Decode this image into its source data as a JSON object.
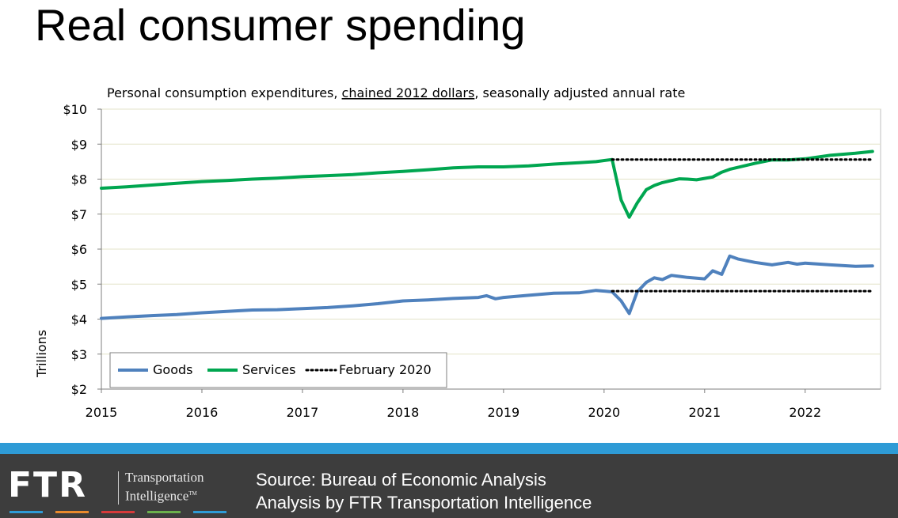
{
  "title": "Real consumer spending",
  "chart_data": {
    "type": "line",
    "subtitle_parts": [
      "Personal consumption expenditures, ",
      "chained 2012 dollars",
      ", seasonally adjusted annual rate"
    ],
    "ylabel": "Trillions",
    "ylim": [
      2,
      10
    ],
    "yticks": [
      "$2",
      "$3",
      "$4",
      "$5",
      "$6",
      "$7",
      "$8",
      "$9",
      "$10"
    ],
    "xlim": [
      2015.0,
      2022.75
    ],
    "xticks": [
      "2015",
      "2016",
      "2017",
      "2018",
      "2019",
      "2020",
      "2021",
      "2022"
    ],
    "grid": true,
    "legend_position": "bottom-left",
    "series": [
      {
        "name": "Goods",
        "color": "#4f81bd",
        "style": "solid",
        "x": [
          2015.0,
          2015.25,
          2015.5,
          2015.75,
          2016.0,
          2016.25,
          2016.5,
          2016.75,
          2017.0,
          2017.25,
          2017.5,
          2017.75,
          2018.0,
          2018.25,
          2018.5,
          2018.75,
          2018.83,
          2018.92,
          2019.0,
          2019.25,
          2019.5,
          2019.75,
          2019.92,
          2020.08,
          2020.17,
          2020.25,
          2020.33,
          2020.42,
          2020.5,
          2020.58,
          2020.67,
          2020.75,
          2020.83,
          2021.0,
          2021.08,
          2021.17,
          2021.25,
          2021.33,
          2021.5,
          2021.67,
          2021.83,
          2021.92,
          2022.0,
          2022.25,
          2022.5,
          2022.67
        ],
        "values": [
          4.02,
          4.06,
          4.1,
          4.13,
          4.18,
          4.22,
          4.26,
          4.27,
          4.3,
          4.33,
          4.38,
          4.44,
          4.52,
          4.55,
          4.59,
          4.62,
          4.67,
          4.58,
          4.62,
          4.68,
          4.74,
          4.75,
          4.82,
          4.78,
          4.52,
          4.16,
          4.78,
          5.05,
          5.18,
          5.13,
          5.25,
          5.22,
          5.19,
          5.15,
          5.38,
          5.28,
          5.8,
          5.72,
          5.62,
          5.55,
          5.62,
          5.57,
          5.6,
          5.55,
          5.51,
          5.52
        ]
      },
      {
        "name": "Services",
        "color": "#00a650",
        "style": "solid",
        "x": [
          2015.0,
          2015.25,
          2015.5,
          2015.75,
          2016.0,
          2016.25,
          2016.5,
          2016.75,
          2017.0,
          2017.25,
          2017.5,
          2017.75,
          2018.0,
          2018.25,
          2018.5,
          2018.75,
          2019.0,
          2019.25,
          2019.5,
          2019.75,
          2019.92,
          2020.08,
          2020.17,
          2020.25,
          2020.33,
          2020.42,
          2020.5,
          2020.58,
          2020.67,
          2020.75,
          2020.83,
          2020.92,
          2021.0,
          2021.08,
          2021.17,
          2021.25,
          2021.5,
          2021.67,
          2021.83,
          2022.0,
          2022.25,
          2022.5,
          2022.67
        ],
        "values": [
          7.74,
          7.78,
          7.83,
          7.88,
          7.93,
          7.96,
          8.0,
          8.03,
          8.07,
          8.1,
          8.13,
          8.18,
          8.22,
          8.27,
          8.32,
          8.35,
          8.35,
          8.38,
          8.43,
          8.47,
          8.5,
          8.56,
          7.4,
          6.91,
          7.32,
          7.7,
          7.82,
          7.9,
          7.96,
          8.01,
          8.0,
          7.98,
          8.02,
          8.06,
          8.2,
          8.28,
          8.45,
          8.55,
          8.55,
          8.58,
          8.68,
          8.74,
          8.79
        ]
      },
      {
        "name": "February 2020",
        "color": "#000000",
        "style": "dotted",
        "segments": [
          {
            "x": [
              2020.08,
              2022.67
            ],
            "values": [
              8.56,
              8.56
            ]
          },
          {
            "x": [
              2020.08,
              2022.67
            ],
            "values": [
              4.8,
              4.8
            ]
          }
        ]
      }
    ]
  },
  "footer": {
    "logo_text": "FTR",
    "logo_sub_line1": "Transportation",
    "logo_sub_line2": "Intelligence",
    "logo_tm": "TM",
    "source_line1": "Source: Bureau of Economic Analysis",
    "source_line2": "Analysis by FTR Transportation Intelligence",
    "accent_colors": [
      "#2e9bd6",
      "#e98a2c",
      "#d63a3a",
      "#6ab04c",
      "#2e9bd6"
    ]
  }
}
